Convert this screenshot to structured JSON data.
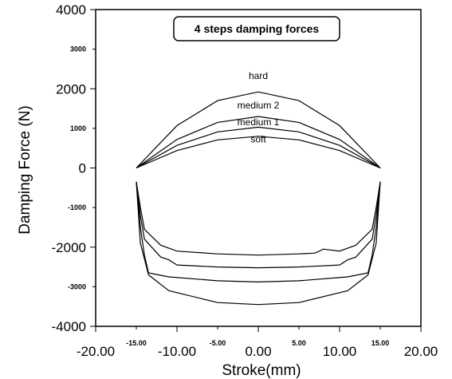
{
  "chart_data": {
    "type": "line",
    "title": "4 steps damping forces",
    "xlabel": "Stroke(mm)",
    "ylabel": "Damping Force (N)",
    "xlim": [
      -20,
      20
    ],
    "ylim": [
      -4000,
      4000
    ],
    "x_ticks_major": [
      {
        "value": -20,
        "label": "-20.00"
      },
      {
        "value": -10,
        "label": "-10.00"
      },
      {
        "value": 0,
        "label": "0.00"
      },
      {
        "value": 10,
        "label": "10.00"
      },
      {
        "value": 20,
        "label": "20.00"
      }
    ],
    "x_ticks_minor": [
      {
        "value": -15,
        "label": "-15.00"
      },
      {
        "value": -5,
        "label": "-5.00"
      },
      {
        "value": 5,
        "label": "5.00"
      },
      {
        "value": 15,
        "label": "15.00"
      }
    ],
    "y_ticks_major": [
      {
        "value": 4000,
        "label": "4000"
      },
      {
        "value": 2000,
        "label": "2000"
      },
      {
        "value": 0,
        "label": "0"
      },
      {
        "value": -2000,
        "label": "-2000"
      },
      {
        "value": -4000,
        "label": "-4000"
      }
    ],
    "y_ticks_minor": [
      {
        "value": 3000,
        "label": "3000"
      },
      {
        "value": 1000,
        "label": "1000"
      },
      {
        "value": -1000,
        "label": "-1000"
      },
      {
        "value": -3000,
        "label": "-3000"
      }
    ],
    "grid": false,
    "legend": "none",
    "series": [
      {
        "name": "hard",
        "label_at": [
          0,
          2250
        ],
        "upper": [
          [
            -15,
            0
          ],
          [
            -10,
            1070
          ],
          [
            -5,
            1700
          ],
          [
            0,
            1920
          ],
          [
            5,
            1700
          ],
          [
            10,
            1070
          ],
          [
            15,
            0
          ]
        ],
        "lower": [
          [
            -15,
            -350
          ],
          [
            -14.5,
            -1900
          ],
          [
            -13.5,
            -2700
          ],
          [
            -11,
            -3100
          ],
          [
            -5,
            -3400
          ],
          [
            0,
            -3450
          ],
          [
            5,
            -3400
          ],
          [
            11,
            -3100
          ],
          [
            13.5,
            -2700
          ],
          [
            14.5,
            -1900
          ],
          [
            15,
            -350
          ]
        ]
      },
      {
        "name": "medium 2",
        "label_at": [
          0,
          1500
        ],
        "upper": [
          [
            -15,
            0
          ],
          [
            -10,
            720
          ],
          [
            -5,
            1150
          ],
          [
            0,
            1300
          ],
          [
            5,
            1150
          ],
          [
            10,
            720
          ],
          [
            15,
            0
          ]
        ],
        "lower": [
          [
            -15,
            -350
          ],
          [
            -14.5,
            -1500
          ],
          [
            -14,
            -2200
          ],
          [
            -13.5,
            -2650
          ],
          [
            -11,
            -2750
          ],
          [
            -5,
            -2850
          ],
          [
            0,
            -2880
          ],
          [
            5,
            -2850
          ],
          [
            11,
            -2750
          ],
          [
            13.5,
            -2650
          ],
          [
            14,
            -2200
          ],
          [
            14.5,
            -1500
          ],
          [
            15,
            -350
          ]
        ]
      },
      {
        "name": "medium 1",
        "label_at": [
          0,
          1080
        ],
        "upper": [
          [
            -15,
            0
          ],
          [
            -10,
            570
          ],
          [
            -5,
            910
          ],
          [
            0,
            1030
          ],
          [
            5,
            910
          ],
          [
            10,
            570
          ],
          [
            15,
            0
          ]
        ],
        "lower": [
          [
            -15,
            -350
          ],
          [
            -14.5,
            -1200
          ],
          [
            -14,
            -1800
          ],
          [
            -12,
            -2250
          ],
          [
            -11,
            -2320
          ],
          [
            -10,
            -2450
          ],
          [
            -5,
            -2500
          ],
          [
            0,
            -2520
          ],
          [
            5,
            -2500
          ],
          [
            10,
            -2450
          ],
          [
            11,
            -2320
          ],
          [
            12,
            -2250
          ],
          [
            14,
            -1800
          ],
          [
            14.5,
            -1200
          ],
          [
            15,
            -350
          ]
        ]
      },
      {
        "name": "soft",
        "label_at": [
          0,
          640
        ],
        "upper": [
          [
            -15,
            0
          ],
          [
            -10,
            440
          ],
          [
            -5,
            710
          ],
          [
            0,
            800
          ],
          [
            5,
            710
          ],
          [
            10,
            440
          ],
          [
            15,
            0
          ]
        ],
        "lower": [
          [
            -15,
            -350
          ],
          [
            -14.5,
            -1000
          ],
          [
            -14,
            -1550
          ],
          [
            -12,
            -1950
          ],
          [
            -10,
            -2100
          ],
          [
            -5,
            -2170
          ],
          [
            0,
            -2200
          ],
          [
            5,
            -2170
          ],
          [
            7,
            -2150
          ],
          [
            8,
            -2050
          ],
          [
            10,
            -2100
          ],
          [
            12,
            -1950
          ],
          [
            14,
            -1550
          ],
          [
            14.5,
            -1000
          ],
          [
            15,
            -350
          ]
        ]
      }
    ]
  }
}
